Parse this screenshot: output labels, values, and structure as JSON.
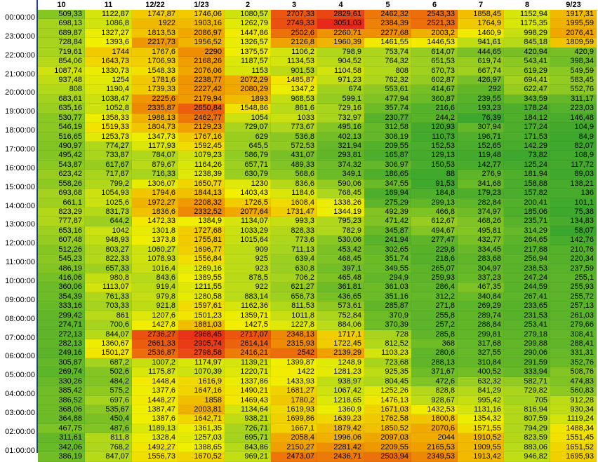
{
  "columns": [
    "10",
    "11",
    "12/22",
    "1/23",
    "2",
    "3",
    "4",
    "5",
    "6",
    "7",
    "8",
    "9/23"
  ],
  "time_labels": {
    "0": "00:00:00",
    "2": "23:00:00",
    "4": "22:00:00",
    "6": "21:00:00",
    "8": "20:00:00",
    "10": "19:00:00",
    "12": "18:00:00",
    "14": "17:00:00",
    "16": "16:00:00",
    "18": "15:00:00",
    "20": "14:00:00",
    "22": "13:00:00",
    "24": "12:00:00",
    "26": "11:00:00",
    "28": "10:00:00",
    "30": "09:00:00",
    "32": "08:00:00",
    "34": "07:00:00",
    "36": "06:00:00",
    "38": "05:00:00",
    "40": "04:00:00",
    "42": "03:00:00",
    "44": "02:00:00",
    "46": "01:00:00"
  },
  "rows": [
    [
      "509,33",
      "1122,87",
      "1747,87",
      "1746,06",
      "1080,57",
      "2707,33",
      "2829,61",
      "2462,32",
      "2543,33",
      "1858,45",
      "1152,94",
      "1917,31"
    ],
    [
      "698,13",
      "1086,8",
      "1922",
      "1903,16",
      "1262,79",
      "2749,33",
      "3051,03",
      "2384,39",
      "2521,33",
      "1764,9",
      "1175,35",
      "1995,59"
    ],
    [
      "689,87",
      "1327,27",
      "1813,53",
      "2086,97",
      "1447,86",
      "2502,6",
      "2260,71",
      "2277,68",
      "2003,2",
      "1460,9",
      "998,29",
      "2076,41"
    ],
    [
      "728,84",
      "1393,6",
      "2217,73",
      "1956,52",
      "1326,57",
      "2126,8",
      "1960,39",
      "1461,55",
      "1446,53",
      "941,61",
      "845,18",
      "1809,59"
    ],
    [
      "719,61",
      "1744",
      "1767,6",
      "2290",
      "1375,57",
      "1106,2",
      "798,9",
      "753,74",
      "614,07",
      "444,65",
      "420,94",
      "420,9"
    ],
    [
      "854,06",
      "1643,73",
      "1706,93",
      "2168,26",
      "1187,57",
      "1134,53",
      "904,52",
      "764,32",
      "651,53",
      "619,74",
      "543,41",
      "398,34"
    ],
    [
      "1087,74",
      "1330,73",
      "1548,33",
      "2076,06",
      "1153",
      "901,53",
      "1104,58",
      "808",
      "670,73",
      "667,74",
      "619,29",
      "549,59"
    ],
    [
      "937,48",
      "1254",
      "1781,6",
      "2238,77",
      "2072,29",
      "1485,87",
      "971,23",
      "762,32",
      "602,87",
      "426,97",
      "694,41",
      "583,45"
    ],
    [
      "808",
      "1190,4",
      "1739,33",
      "2227,42",
      "2080,29",
      "1347,2",
      "674",
      "553,61",
      "414,67",
      "292",
      "622,47",
      "552,76"
    ],
    [
      "683,61",
      "1038,47",
      "2225,6",
      "2179,94",
      "1893",
      "968,53",
      "599,1",
      "477,94",
      "360,87",
      "239,55",
      "343,59",
      "311,17"
    ],
    [
      "635,16",
      "1052,8",
      "2335,87",
      "2650,84",
      "1548,86",
      "861,6",
      "729,16",
      "357,74",
      "216,6",
      "193,23",
      "178,24",
      "223,03"
    ],
    [
      "530,77",
      "1358,33",
      "1988,13",
      "2462,77",
      "1054",
      "1033",
      "732,97",
      "230,77",
      "244,2",
      "76,39",
      "184,12",
      "146,48"
    ],
    [
      "546,19",
      "1519,33",
      "1804,73",
      "2129,23",
      "729,07",
      "773,67",
      "495,16",
      "312,58",
      "120,93",
      "307,94",
      "177,24",
      "104,9"
    ],
    [
      "516,65",
      "1253,73",
      "1347,73",
      "1767,16",
      "629",
      "536,8",
      "402,13",
      "308,19",
      "110,73",
      "196,71",
      "171,53",
      "84,9"
    ],
    [
      "490,97",
      "774,27",
      "1177,93",
      "1592,45",
      "645,5",
      "572,53",
      "321,94",
      "209,55",
      "152,53",
      "152,65",
      "142,29",
      "82,07"
    ],
    [
      "495,42",
      "733,87",
      "784,07",
      "1079,23",
      "586,79",
      "431,07",
      "293,81",
      "165,87",
      "129,13",
      "119,48",
      "73,82",
      "108,9"
    ],
    [
      "543,87",
      "617,67",
      "879,67",
      "1164,26",
      "657,71",
      "489,33",
      "374,32",
      "306,97",
      "150,53",
      "142,77",
      "125,24",
      "117,72"
    ],
    [
      "623,42",
      "717,87",
      "716,33",
      "1238,39",
      "630,79",
      "568,6",
      "349,1",
      "186,65",
      "88",
      "276,9",
      "181,94",
      "89,03"
    ],
    [
      "558,26",
      "799,2",
      "1306,07",
      "1650,77",
      "1230",
      "836,6",
      "590,06",
      "347,55",
      "91,53",
      "341,68",
      "158,88",
      "138,21"
    ],
    [
      "693,68",
      "1054,93",
      "1794,6",
      "1844,13",
      "1403,43",
      "1184,6",
      "768,45",
      "169,94",
      "184,8",
      "179,23",
      "157,82",
      "136"
    ],
    [
      "661,1",
      "1025,6",
      "1972,27",
      "2208,32",
      "1726,5",
      "1608,4",
      "1338,26",
      "275,29",
      "299,13",
      "282,84",
      "200,41",
      "101,1"
    ],
    [
      "823,29",
      "831,73",
      "1836,6",
      "2332,52",
      "2077,64",
      "1731,47",
      "1344,19",
      "492,39",
      "466,8",
      "374,97",
      "185,06",
      "75,38"
    ],
    [
      "777,87",
      "644,2",
      "1472,33",
      "1384,9",
      "1134,07",
      "993,3",
      "795,23",
      "471,42",
      "612,67",
      "468,26",
      "235,71",
      "134,83"
    ],
    [
      "653,16",
      "1042",
      "1301,8",
      "1727,68",
      "1033,29",
      "828,33",
      "782,9",
      "345,87",
      "494,67",
      "495,81",
      "314,29",
      "58,07"
    ],
    [
      "607,48",
      "948,93",
      "1373,8",
      "1755,81",
      "1015,64",
      "773,6",
      "530,06",
      "241,94",
      "277,47",
      "432,77",
      "264,65",
      "142,76"
    ],
    [
      "512,26",
      "803,27",
      "1060,27",
      "1696,77",
      "909",
      "711,13",
      "453,42",
      "302,65",
      "229,8",
      "334,45",
      "217,88",
      "210,76"
    ],
    [
      "545,23",
      "822,33",
      "1078,93",
      "1556,84",
      "925",
      "639,4",
      "468,45",
      "351,74",
      "218,6",
      "283,68",
      "256,94",
      "220,34"
    ],
    [
      "486,19",
      "657,33",
      "1016,4",
      "1269,16",
      "923",
      "630,8",
      "397,1",
      "349,55",
      "265,07",
      "304,97",
      "238,53",
      "237,59"
    ],
    [
      "416,06",
      "980,8",
      "843,6",
      "1389,55",
      "878,5",
      "706,2",
      "465,48",
      "294,9",
      "259,93",
      "337,23",
      "247,24",
      "255,1"
    ],
    [
      "360,06",
      "1113,07",
      "919,4",
      "1211,55",
      "922",
      "621,27",
      "361,81",
      "361,03",
      "286,4",
      "467,35",
      "244,59",
      "255,93"
    ],
    [
      "354,39",
      "761,33",
      "979,8",
      "1280,58",
      "883,14",
      "656,73",
      "436,65",
      "351,16",
      "312,2",
      "340,84",
      "267,41",
      "255,72"
    ],
    [
      "333,16",
      "703,33",
      "921,8",
      "1597,61",
      "1162,36",
      "811,53",
      "573,61",
      "285,87",
      "271,8",
      "269,29",
      "233,65",
      "257,13"
    ],
    [
      "299,42",
      "861",
      "1207,6",
      "1501,23",
      "1359,71",
      "1011,8",
      "752,84",
      "370,9",
      "255,8",
      "289,74",
      "231,53",
      "261,03"
    ],
    [
      "274,71",
      "700,6",
      "1427,8",
      "1881,03",
      "1427,5",
      "1227,8",
      "884,06",
      "370,39",
      "257,2",
      "288,84",
      "253,41",
      "279,66"
    ],
    [
      "272,13",
      "844,07",
      "2736,27",
      "2968,45",
      "2717,07",
      "2348,13",
      "1717,1",
      "728",
      "285,8",
      "299,81",
      "279,18",
      "308,41"
    ],
    [
      "282,13",
      "1360,67",
      "2661,33",
      "2905,74",
      "2614,14",
      "2315,93",
      "1722,45",
      "812,52",
      "368",
      "317,68",
      "299,88",
      "288,41"
    ],
    [
      "249,16",
      "1501,27",
      "2536,87",
      "2798,58",
      "2416,21",
      "2542",
      "2139,29",
      "1103,23",
      "280,6",
      "327,55",
      "290,06",
      "331,31"
    ],
    [
      "305,87",
      "687,2",
      "1007,2",
      "1174,97",
      "1139,21",
      "1399,87",
      "1248,9",
      "723,68",
      "288,13",
      "310,84",
      "291,59",
      "352,76"
    ],
    [
      "269,74",
      "502,6",
      "1175,87",
      "1070,39",
      "1220,71",
      "1422",
      "1281,23",
      "925,35",
      "371,67",
      "400,52",
      "333,94",
      "508,76"
    ],
    [
      "330,26",
      "484,2",
      "1448,4",
      "1616,9",
      "1337,86",
      "1433,93",
      "938,97",
      "804,45",
      "472,6",
      "632,32",
      "582,71",
      "474,83"
    ],
    [
      "385,42",
      "575,2",
      "1377,6",
      "1647,16",
      "1490,21",
      "1681,27",
      "1067,42",
      "1252,26",
      "828,8",
      "841,29",
      "729,82",
      "560,83"
    ],
    [
      "386,52",
      "697,6",
      "1448,27",
      "1858",
      "1469,43",
      "1780,2",
      "1218,65",
      "1476,13",
      "928,67",
      "995,42",
      "705",
      "912,28"
    ],
    [
      "368,06",
      "535,67",
      "1387,47",
      "2003,81",
      "1134,64",
      "1619,93",
      "1360,9",
      "1671,03",
      "1432,53",
      "1131,16",
      "816,94",
      "930,34"
    ],
    [
      "364,88",
      "450,4",
      "1387,6",
      "1642,71",
      "938,21",
      "1699,86",
      "1639,23",
      "1762,58",
      "1800,8",
      "1354,32",
      "807,59",
      "1119,24"
    ],
    [
      "467,75",
      "487,6",
      "1189,13",
      "1361,35",
      "726,71",
      "1667,1",
      "1879,42",
      "1850,52",
      "2070,6",
      "1571,55",
      "794,29",
      "1488,34"
    ],
    [
      "311,61",
      "811,8",
      "1328,4",
      "1257,03",
      "695,71",
      "2058,4",
      "1996,06",
      "2097,03",
      "2044",
      "1910,52",
      "823,59",
      "1551,45"
    ],
    [
      "342,06",
      "768,2",
      "1492,27",
      "1388,65",
      "843,86",
      "2150,27",
      "2281,42",
      "2209,55",
      "2165,53",
      "1909,55",
      "883,06",
      "1651,52"
    ],
    [
      "386,19",
      "847,07",
      "1556,73",
      "1670,52",
      "969,21",
      "2473,07",
      "2436,71",
      "2503,94",
      "2349,53",
      "1913,42",
      "946,82",
      "1695,93"
    ]
  ],
  "color_scale": {
    "low": "#3aa62e",
    "mid_low": "#a8d41e",
    "mid": "#f2ef00",
    "mid_high": "#f0a000",
    "high": "#e8281a"
  }
}
